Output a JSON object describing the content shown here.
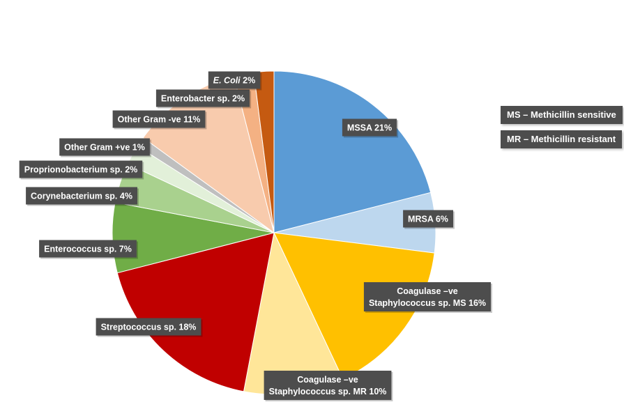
{
  "chart_data": {
    "type": "pie",
    "start_angle_deg": 0,
    "direction": "clockwise",
    "slices": [
      {
        "label": "MSSA 21%",
        "value": 21,
        "color": "#5b9bd5"
      },
      {
        "label": "MRSA 6%",
        "value": 6,
        "color": "#bdd7ee"
      },
      {
        "label_lines": [
          "Coagulase –ve",
          "Staphylococcus sp. MS 16%"
        ],
        "value": 16,
        "color": "#ffc000"
      },
      {
        "label_lines": [
          "Coagulase –ve",
          "Staphylococcus sp. MR 10%"
        ],
        "value": 10,
        "color": "#ffe699"
      },
      {
        "label": "Streptococcus sp. 18%",
        "value": 18,
        "color": "#c00000"
      },
      {
        "label": "Enterococcus sp. 7%",
        "value": 7,
        "color": "#70ad47"
      },
      {
        "label": "Corynebacterium sp. 4%",
        "value": 4,
        "color": "#a9d18e"
      },
      {
        "label": "Proprionobacterium sp. 2%",
        "value": 2,
        "color": "#e2f0d9"
      },
      {
        "label": "Other Gram +ve 1%",
        "value": 1,
        "color": "#bfbfbf"
      },
      {
        "label": "Other Gram -ve 11%",
        "value": 11,
        "color": "#f8cbad"
      },
      {
        "label": "Enterobacter sp. 2%",
        "value": 2,
        "color": "#f4b183"
      },
      {
        "label": "E. Coli 2%",
        "value": 2,
        "color": "#c55a11",
        "italic_part": "E. Coli"
      }
    ]
  },
  "legend": {
    "ms": "MS – Methicillin sensitive",
    "mr": "MR – Methicillin resistant"
  }
}
